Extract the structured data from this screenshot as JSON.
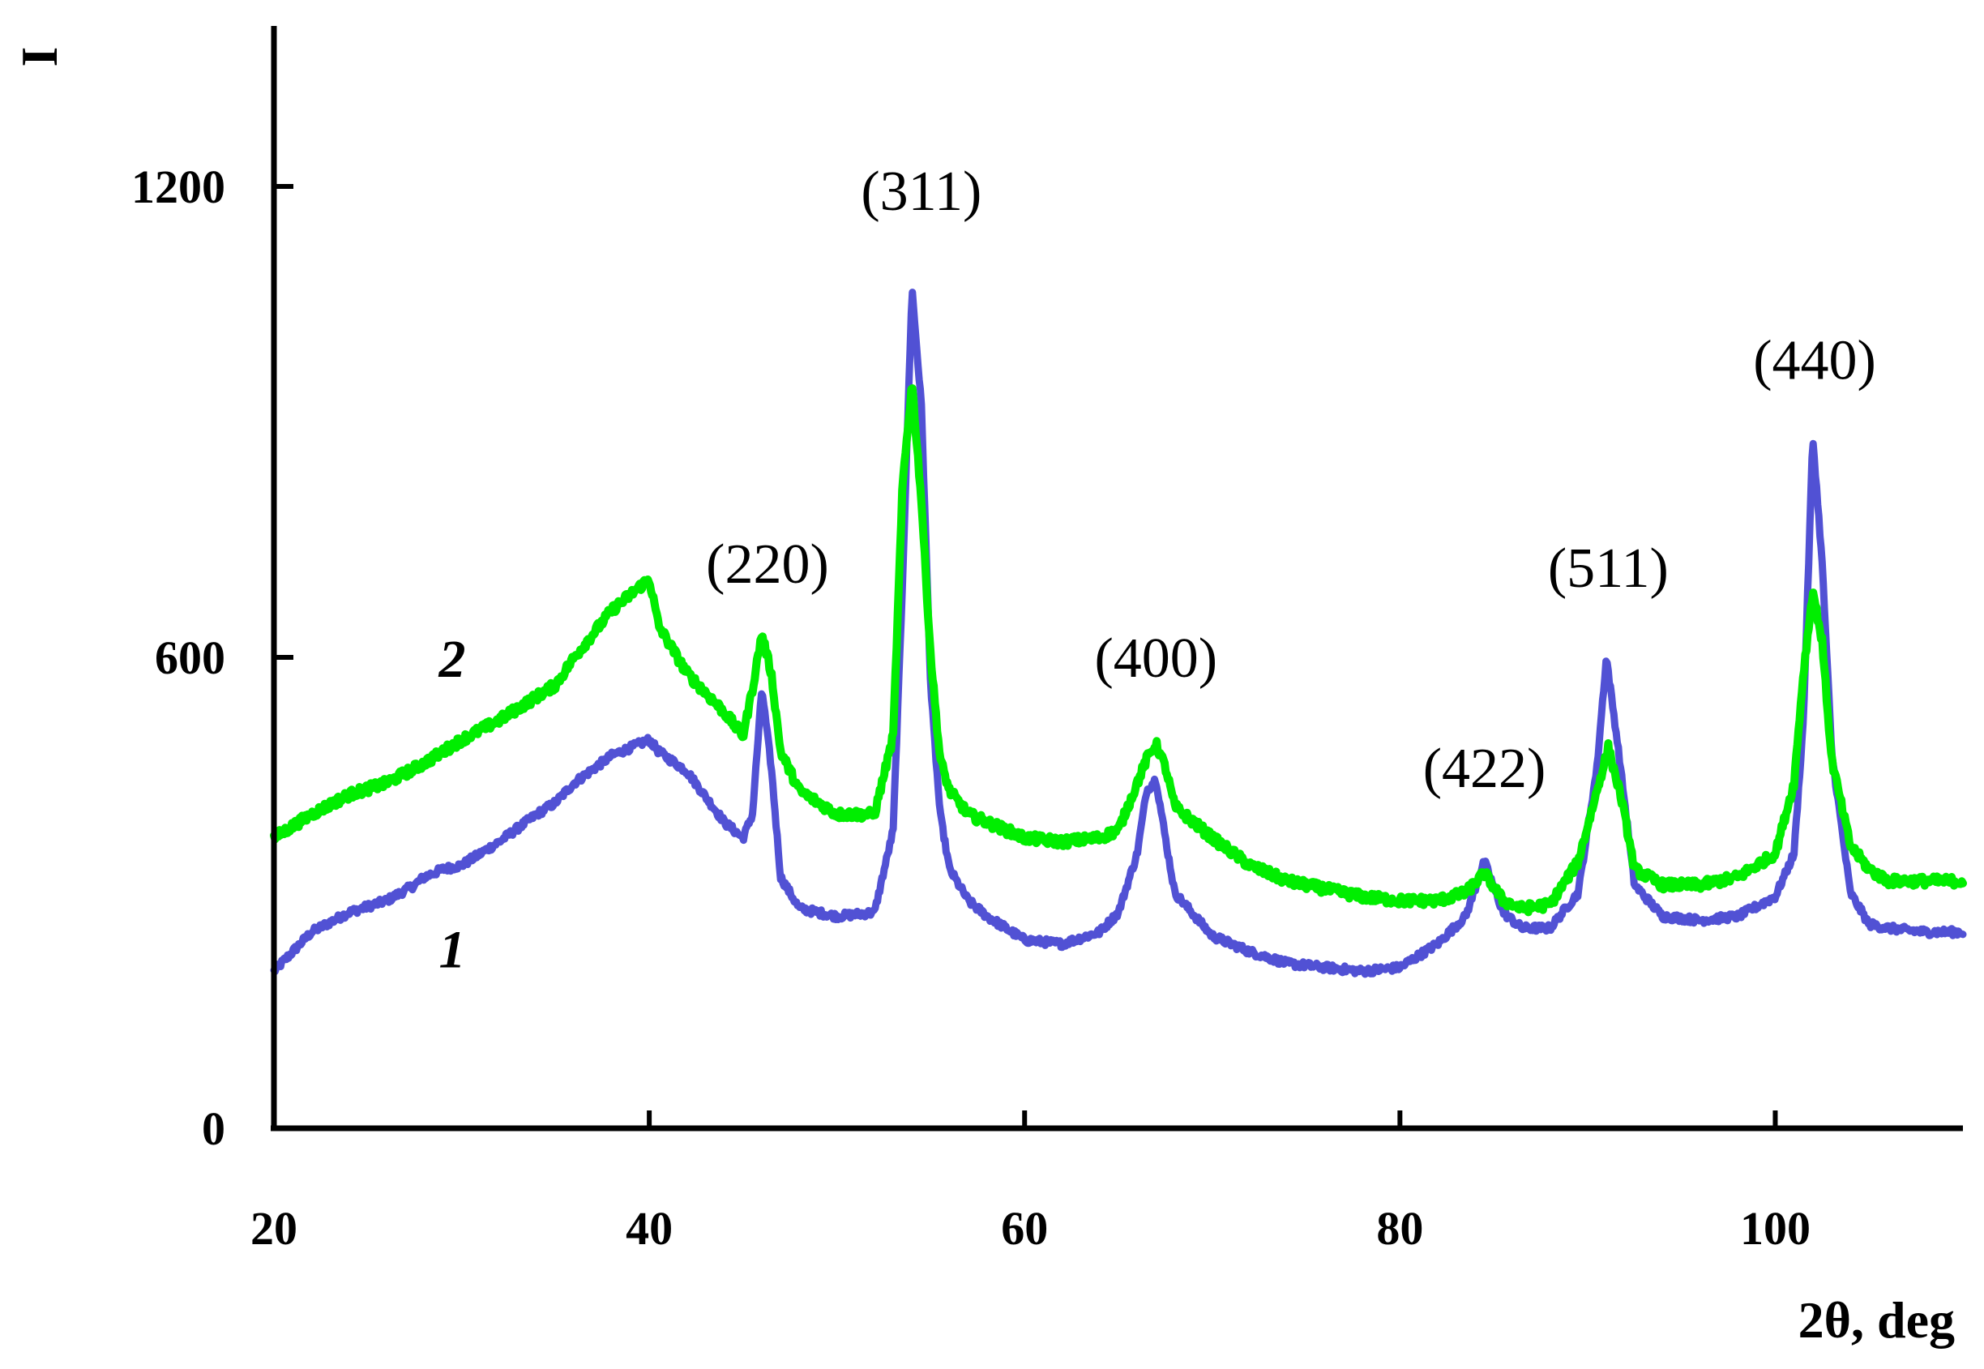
{
  "chart_data": {
    "type": "line",
    "xlabel": "2θ, deg",
    "ylabel": "I",
    "xlim": [
      20,
      110
    ],
    "ylim": [
      0,
      1400
    ],
    "x_ticks": [
      20,
      40,
      60,
      80,
      100
    ],
    "y_ticks": [
      0,
      600,
      1200
    ],
    "x_tick_labels": [
      "20",
      "40",
      "60",
      "80",
      "100"
    ],
    "y_tick_labels": [
      "0",
      "600",
      "1200"
    ],
    "grid": false,
    "legend": "none",
    "colors": {
      "axes": "#000000",
      "series_1": "#3333cc",
      "series_2": "#00ee00"
    },
    "peak_annotations": [
      {
        "label": "(220)",
        "x": 46.3,
        "y": 695
      },
      {
        "label": "(311)",
        "x": 54.5,
        "y": 1170
      },
      {
        "label": "(400)",
        "x": 67.0,
        "y": 575
      },
      {
        "label": "(422)",
        "x": 84.5,
        "y": 435
      },
      {
        "label": "(511)",
        "x": 91.1,
        "y": 690
      },
      {
        "label": "(440)",
        "x": 102.1,
        "y": 955
      }
    ],
    "series_labels": [
      {
        "label": "2",
        "x": 29.5,
        "y": 575
      },
      {
        "label": "1",
        "x": 29.5,
        "y": 205
      }
    ],
    "series": [
      {
        "label": "1",
        "color": "#3333cc",
        "x": [
          20,
          22,
          24,
          26,
          27.5,
          28,
          29,
          30,
          32,
          34,
          35,
          36,
          38,
          39.5,
          40,
          40.5,
          42,
          44,
          45,
          45.5,
          46,
          46.5,
          47,
          48,
          50,
          52,
          53,
          53.5,
          54,
          54.5,
          55,
          55.5,
          56,
          57,
          58,
          60,
          62,
          64,
          65,
          66,
          66.5,
          67,
          67.5,
          68,
          70,
          72,
          74,
          76,
          78,
          80,
          82,
          83.5,
          84.5,
          85.5,
          86.5,
          88,
          89.5,
          90.5,
          91,
          91.6,
          92.5,
          94,
          96,
          98,
          100,
          101,
          101.5,
          102,
          102.5,
          103,
          104,
          105,
          106,
          108,
          110
        ],
        "y": [
          200,
          250,
          275,
          290,
          310,
          320,
          330,
          335,
          365,
          400,
          415,
          440,
          475,
          490,
          495,
          480,
          455,
          390,
          370,
          400,
          560,
          460,
          320,
          280,
          270,
          275,
          380,
          700,
          1070,
          920,
          560,
          400,
          330,
          290,
          270,
          240,
          235,
          250,
          275,
          350,
          430,
          445,
          370,
          300,
          245,
          225,
          210,
          205,
          200,
          205,
          235,
          270,
          340,
          275,
          255,
          255,
          300,
          460,
          600,
          490,
          310,
          270,
          265,
          270,
          295,
          350,
          520,
          880,
          720,
          480,
          300,
          260,
          255,
          250,
          250
        ]
      },
      {
        "label": "2",
        "color": "#00ee00",
        "x": [
          20,
          22,
          24,
          26,
          28,
          30,
          32,
          34,
          35,
          36,
          38,
          39.5,
          40,
          40.5,
          42,
          44,
          45,
          45.5,
          46,
          46.5,
          47,
          48,
          50,
          52,
          53,
          53.5,
          54,
          54.5,
          55,
          55.5,
          56,
          57,
          58,
          60,
          62,
          64,
          65,
          66,
          66.5,
          67,
          67.5,
          68,
          70,
          72,
          74,
          76,
          78,
          80,
          82,
          83.5,
          84.5,
          85.5,
          86.5,
          88,
          89.5,
          90.5,
          91.1,
          91.8,
          92.5,
          94,
          96,
          98,
          100,
          101,
          101.5,
          102,
          102.5,
          103,
          104,
          105,
          106,
          108,
          110
        ],
        "y": [
          370,
          400,
          425,
          440,
          465,
          495,
          520,
          550,
          565,
          600,
          660,
          690,
          700,
          640,
          580,
          530,
          500,
          560,
          630,
          580,
          480,
          430,
          400,
          400,
          500,
          820,
          950,
          800,
          600,
          470,
          430,
          400,
          390,
          370,
          365,
          370,
          380,
          440,
          470,
          490,
          460,
          410,
          370,
          335,
          315,
          305,
          295,
          290,
          290,
          300,
          325,
          290,
          280,
          285,
          340,
          430,
          485,
          420,
          330,
          310,
          310,
          320,
          350,
          440,
          580,
          685,
          620,
          470,
          360,
          330,
          315,
          315,
          315
        ]
      }
    ]
  }
}
